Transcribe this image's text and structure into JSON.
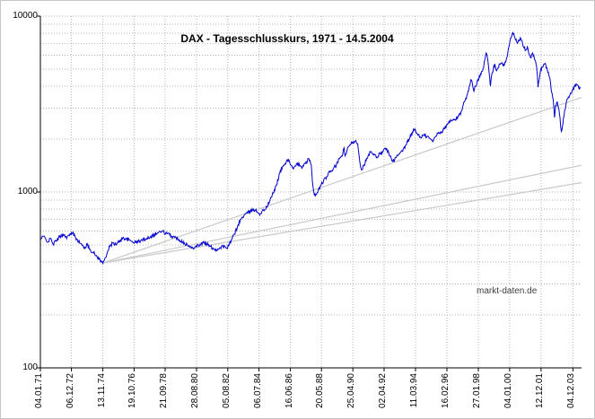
{
  "title": "DAX - Tagesschlusskurs, 1971 - 14.5.2004",
  "watermark": "markt-daten.de",
  "colors": {
    "background": "#ffffff",
    "series": "#0000cc",
    "trend": "#c9c9c9",
    "grid": "#b4b4b4",
    "axis": "#000000",
    "title": "#000000",
    "watermark": "#3d3d3d"
  },
  "chart_data": {
    "type": "line",
    "title": "DAX - Tagesschlusskurs, 1971 - 14.5.2004",
    "xlabel": "",
    "ylabel": "",
    "legend": "none",
    "grid": "dotted",
    "y_axis": {
      "scale": "log",
      "min": 100,
      "max": 10000,
      "tick_values": [
        100,
        1000,
        10000
      ],
      "tick_labels": [
        "100",
        "1000",
        "10000"
      ],
      "minor_grid": true
    },
    "x_range": [
      1971.01,
      2004.45
    ],
    "x_axis": {
      "labels": [
        {
          "label": "04.01.71",
          "year": 1971.01
        },
        {
          "label": "06.12.72",
          "year": 1972.93
        },
        {
          "label": "13.11.74",
          "year": 1974.87
        },
        {
          "label": "19.10.76",
          "year": 1976.8
        },
        {
          "label": "21.09.78",
          "year": 1978.72
        },
        {
          "label": "28.08.80",
          "year": 1980.66
        },
        {
          "label": "05.08.82",
          "year": 1982.59
        },
        {
          "label": "06.07.84",
          "year": 1984.52
        },
        {
          "label": "16.06.86",
          "year": 1986.46
        },
        {
          "label": "20.05.88",
          "year": 1988.38
        },
        {
          "label": "25.04.90",
          "year": 1990.32
        },
        {
          "label": "02.04.92",
          "year": 1992.25
        },
        {
          "label": "11.03.94",
          "year": 1994.19
        },
        {
          "label": "16.02.96",
          "year": 1996.13
        },
        {
          "label": "27.01.98",
          "year": 1998.07
        },
        {
          "label": "04.01.00",
          "year": 2000.01
        },
        {
          "label": "12.12.01",
          "year": 2001.95
        },
        {
          "label": "04.12.03",
          "year": 2003.92
        }
      ]
    },
    "trend_lines": [
      {
        "color": "#c9c9c9",
        "from": [
          1974.87,
          395
        ],
        "to": [
          2004.45,
          3450
        ]
      },
      {
        "color": "#c9c9c9",
        "from": [
          1974.87,
          395
        ],
        "to": [
          2004.45,
          1420
        ]
      },
      {
        "color": "#c9c9c9",
        "from": [
          1974.87,
          395
        ],
        "to": [
          2004.45,
          1130
        ]
      }
    ],
    "series": [
      {
        "name": "DAX Tagesschlusskurs",
        "color": "#0000cc",
        "points": [
          [
            1971.01,
            535
          ],
          [
            1971.2,
            560
          ],
          [
            1971.35,
            540
          ],
          [
            1971.5,
            520
          ],
          [
            1971.65,
            545
          ],
          [
            1971.8,
            505
          ],
          [
            1972.0,
            530
          ],
          [
            1972.2,
            555
          ],
          [
            1972.4,
            575
          ],
          [
            1972.6,
            555
          ],
          [
            1972.8,
            565
          ],
          [
            1973.0,
            585
          ],
          [
            1973.15,
            560
          ],
          [
            1973.3,
            535
          ],
          [
            1973.5,
            510
          ],
          [
            1973.7,
            480
          ],
          [
            1973.9,
            500
          ],
          [
            1974.1,
            470
          ],
          [
            1974.3,
            450
          ],
          [
            1974.5,
            430
          ],
          [
            1974.7,
            410
          ],
          [
            1974.87,
            393
          ],
          [
            1975.0,
            420
          ],
          [
            1975.15,
            455
          ],
          [
            1975.3,
            490
          ],
          [
            1975.5,
            515
          ],
          [
            1975.7,
            500
          ],
          [
            1975.9,
            528
          ],
          [
            1976.1,
            548
          ],
          [
            1976.3,
            542
          ],
          [
            1976.5,
            532
          ],
          [
            1976.7,
            522
          ],
          [
            1976.9,
            518
          ],
          [
            1977.2,
            528
          ],
          [
            1977.5,
            542
          ],
          [
            1977.8,
            558
          ],
          [
            1978.0,
            568
          ],
          [
            1978.3,
            588
          ],
          [
            1978.55,
            598
          ],
          [
            1978.75,
            582
          ],
          [
            1979.0,
            570
          ],
          [
            1979.3,
            552
          ],
          [
            1979.6,
            535
          ],
          [
            1979.9,
            515
          ],
          [
            1980.1,
            498
          ],
          [
            1980.35,
            480
          ],
          [
            1980.6,
            492
          ],
          [
            1980.85,
            502
          ],
          [
            1981.1,
            515
          ],
          [
            1981.3,
            505
          ],
          [
            1981.5,
            490
          ],
          [
            1981.7,
            478
          ],
          [
            1981.9,
            468
          ],
          [
            1982.1,
            482
          ],
          [
            1982.3,
            492
          ],
          [
            1982.5,
            478
          ],
          [
            1982.65,
            495
          ],
          [
            1982.8,
            528
          ],
          [
            1983.0,
            578
          ],
          [
            1983.2,
            640
          ],
          [
            1983.4,
            700
          ],
          [
            1983.6,
            738
          ],
          [
            1983.8,
            758
          ],
          [
            1984.0,
            778
          ],
          [
            1984.2,
            798
          ],
          [
            1984.4,
            772
          ],
          [
            1984.6,
            752
          ],
          [
            1984.8,
            788
          ],
          [
            1985.0,
            820
          ],
          [
            1985.2,
            898
          ],
          [
            1985.4,
            985
          ],
          [
            1985.6,
            1100
          ],
          [
            1985.8,
            1280
          ],
          [
            1986.0,
            1400
          ],
          [
            1986.2,
            1480
          ],
          [
            1986.35,
            1528
          ],
          [
            1986.5,
            1420
          ],
          [
            1986.65,
            1352
          ],
          [
            1986.8,
            1408
          ],
          [
            1987.0,
            1448
          ],
          [
            1987.2,
            1382
          ],
          [
            1987.4,
            1452
          ],
          [
            1987.6,
            1548
          ],
          [
            1987.75,
            1420
          ],
          [
            1987.82,
            1150
          ],
          [
            1987.9,
            1005
          ],
          [
            1988.0,
            952
          ],
          [
            1988.15,
            995
          ],
          [
            1988.3,
            1080
          ],
          [
            1988.5,
            1148
          ],
          [
            1988.7,
            1222
          ],
          [
            1988.9,
            1298
          ],
          [
            1989.1,
            1352
          ],
          [
            1989.3,
            1422
          ],
          [
            1989.5,
            1548
          ],
          [
            1989.7,
            1652
          ],
          [
            1989.78,
            1782
          ],
          [
            1989.83,
            1605
          ],
          [
            1989.95,
            1705
          ],
          [
            1990.1,
            1830
          ],
          [
            1990.3,
            1920
          ],
          [
            1990.5,
            1962
          ],
          [
            1990.62,
            1880
          ],
          [
            1990.7,
            1620
          ],
          [
            1990.78,
            1420
          ],
          [
            1990.88,
            1335
          ],
          [
            1991.0,
            1425
          ],
          [
            1991.2,
            1552
          ],
          [
            1991.4,
            1685
          ],
          [
            1991.6,
            1622
          ],
          [
            1991.8,
            1578
          ],
          [
            1992.0,
            1652
          ],
          [
            1992.2,
            1722
          ],
          [
            1992.4,
            1778
          ],
          [
            1992.6,
            1598
          ],
          [
            1992.75,
            1498
          ],
          [
            1992.9,
            1522
          ],
          [
            1993.0,
            1572
          ],
          [
            1993.2,
            1648
          ],
          [
            1993.4,
            1702
          ],
          [
            1993.6,
            1852
          ],
          [
            1993.8,
            2002
          ],
          [
            1994.0,
            2198
          ],
          [
            1994.1,
            2268
          ],
          [
            1994.3,
            2148
          ],
          [
            1994.5,
            2048
          ],
          [
            1994.7,
            2098
          ],
          [
            1994.9,
            2068
          ],
          [
            1995.1,
            2008
          ],
          [
            1995.25,
            1932
          ],
          [
            1995.4,
            2052
          ],
          [
            1995.6,
            2178
          ],
          [
            1995.8,
            2202
          ],
          [
            1996.0,
            2298
          ],
          [
            1996.2,
            2468
          ],
          [
            1996.4,
            2538
          ],
          [
            1996.6,
            2572
          ],
          [
            1996.8,
            2658
          ],
          [
            1997.0,
            2848
          ],
          [
            1997.2,
            3248
          ],
          [
            1997.4,
            3598
          ],
          [
            1997.55,
            4052
          ],
          [
            1997.6,
            4348
          ],
          [
            1997.7,
            4152
          ],
          [
            1997.8,
            3742
          ],
          [
            1997.9,
            4002
          ],
          [
            1998.0,
            4248
          ],
          [
            1998.2,
            4698
          ],
          [
            1998.4,
            5102
          ],
          [
            1998.55,
            6168
          ],
          [
            1998.62,
            5898
          ],
          [
            1998.7,
            5198
          ],
          [
            1998.78,
            4402
          ],
          [
            1998.82,
            3998
          ],
          [
            1998.9,
            4652
          ],
          [
            1999.0,
            5002
          ],
          [
            1999.1,
            5348
          ],
          [
            1999.2,
            4898
          ],
          [
            1999.3,
            5098
          ],
          [
            1999.4,
            5348
          ],
          [
            1999.5,
            5402
          ],
          [
            1999.6,
            5198
          ],
          [
            1999.7,
            5352
          ],
          [
            1999.8,
            5648
          ],
          [
            1999.9,
            6302
          ],
          [
            2000.0,
            6952
          ],
          [
            2000.1,
            7602
          ],
          [
            2000.2,
            8064
          ],
          [
            2000.3,
            7648
          ],
          [
            2000.4,
            7398
          ],
          [
            2000.5,
            7002
          ],
          [
            2000.6,
            7248
          ],
          [
            2000.7,
            7448
          ],
          [
            2000.8,
            7002
          ],
          [
            2000.9,
            6598
          ],
          [
            2001.0,
            6398
          ],
          [
            2001.1,
            6702
          ],
          [
            2001.2,
            6098
          ],
          [
            2001.3,
            5798
          ],
          [
            2001.4,
            6102
          ],
          [
            2001.5,
            5998
          ],
          [
            2001.6,
            5598
          ],
          [
            2001.67,
            5198
          ],
          [
            2001.72,
            4598
          ],
          [
            2001.76,
            3942
          ],
          [
            2001.82,
            4302
          ],
          [
            2001.9,
            4798
          ],
          [
            2002.0,
            5152
          ],
          [
            2002.1,
            5298
          ],
          [
            2002.2,
            5398
          ],
          [
            2002.3,
            5098
          ],
          [
            2002.4,
            4798
          ],
          [
            2002.5,
            4398
          ],
          [
            2002.6,
            3698
          ],
          [
            2002.7,
            3348
          ],
          [
            2002.78,
            2652
          ],
          [
            2002.85,
            3102
          ],
          [
            2002.95,
            3248
          ],
          [
            2003.05,
            2948
          ],
          [
            2003.12,
            2648
          ],
          [
            2003.2,
            2208
          ],
          [
            2003.3,
            2452
          ],
          [
            2003.4,
            2898
          ],
          [
            2003.5,
            3202
          ],
          [
            2003.6,
            3398
          ],
          [
            2003.7,
            3498
          ],
          [
            2003.8,
            3648
          ],
          [
            2003.9,
            3798
          ],
          [
            2004.0,
            3962
          ],
          [
            2004.1,
            4102
          ],
          [
            2004.18,
            4048
          ],
          [
            2004.28,
            3898
          ],
          [
            2004.37,
            3882
          ]
        ]
      }
    ]
  }
}
